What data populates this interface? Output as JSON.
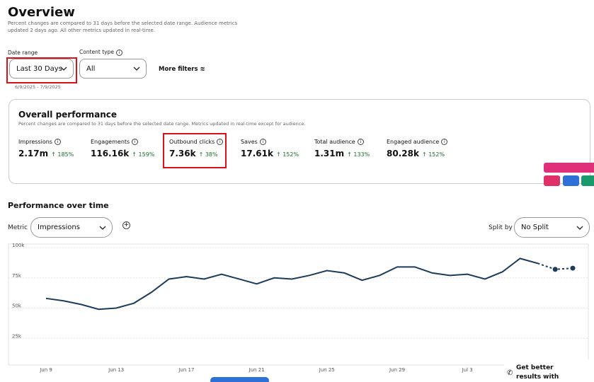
{
  "header": {
    "title": "Overview",
    "note": "Percent changes are compared to 31 days before the selected date range. Audience metrics updated 2 days ago. All other metrics updated in real-time."
  },
  "filters": {
    "date_range_label": "Date range",
    "date_range_value": "Last 30 Days",
    "date_range_dates": "6/9/2025 - 7/9/2025",
    "content_type_label": "Content type",
    "content_type_value": "All",
    "more_filters": "More filters"
  },
  "overall": {
    "title": "Overall performance",
    "note": "Percent changes are compared to 31 days before the selected date range. Metrics updated in real-time except for audience.",
    "metrics": [
      {
        "name": "Impressions",
        "value": "2.17m",
        "change": "185%"
      },
      {
        "name": "Engagements",
        "value": "116.16k",
        "change": "159%"
      },
      {
        "name": "Outbound clicks",
        "value": "7.36k",
        "change": "38%"
      },
      {
        "name": "Saves",
        "value": "17.61k",
        "change": "152%"
      },
      {
        "name": "Total audience",
        "value": "1.31m",
        "change": "133%"
      },
      {
        "name": "Engaged audience",
        "value": "80.28k",
        "change": "152%"
      }
    ]
  },
  "over_time": {
    "title": "Performance over time",
    "metric_label": "Metric",
    "metric_value": "Impressions",
    "split_label": "Split by",
    "split_value": "No Split"
  },
  "chart": {
    "type": "line",
    "categories": [
      "Jun 9",
      null,
      null,
      null,
      "Jun 13",
      null,
      null,
      null,
      "Jun 17",
      null,
      null,
      null,
      "Jun 21",
      null,
      null,
      null,
      "Jun 25",
      null,
      null,
      null,
      "Jun 29",
      null,
      null,
      null,
      "Jul 3",
      null,
      null,
      null,
      null,
      null,
      null
    ],
    "series": [
      {
        "color": "#1d3c5a",
        "dashed": false,
        "values": [
          58000,
          56000,
          53000,
          49000,
          50000,
          54000,
          63000,
          74000,
          76000,
          74000,
          78000,
          74000,
          70000,
          75000,
          74000,
          77000,
          81000,
          79000,
          73000,
          77000,
          84000,
          84000,
          79000,
          77000,
          78000,
          74000,
          80000,
          91000,
          87000,
          null,
          null
        ]
      },
      {
        "color": "#1d3c5a",
        "dashed": true,
        "values": [
          null,
          null,
          null,
          null,
          null,
          null,
          null,
          null,
          null,
          null,
          null,
          null,
          null,
          null,
          null,
          null,
          null,
          null,
          null,
          null,
          null,
          null,
          null,
          null,
          null,
          null,
          null,
          null,
          87000,
          82000,
          83000
        ]
      }
    ],
    "ylim": [
      0,
      100000
    ],
    "yticks": [
      {
        "value": 25000,
        "label": "25k"
      },
      {
        "value": 50000,
        "label": "50k"
      },
      {
        "value": 75000,
        "label": "75k"
      },
      {
        "value": 100000,
        "label": "100k"
      }
    ],
    "grid": true
  },
  "help": {
    "text": "Get better results with expert help"
  }
}
